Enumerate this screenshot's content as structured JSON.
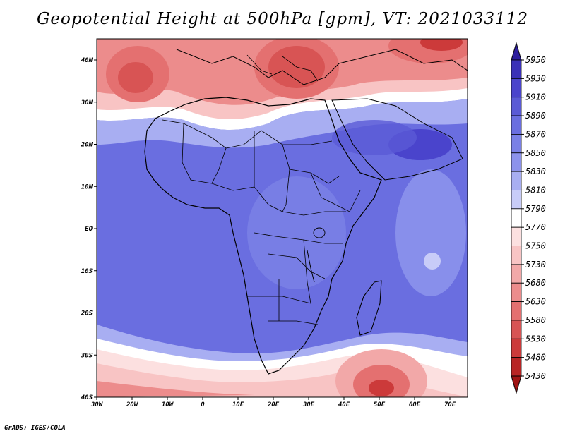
{
  "title": "Geopotential Height at 500hPa [gpm], VT: 2021033112",
  "credit": "GrADS: IGES/COLA",
  "map": {
    "lon_labels": [
      "30W",
      "20W",
      "10W",
      "0",
      "10E",
      "20E",
      "30E",
      "40E",
      "50E",
      "60E",
      "70E"
    ],
    "lat_labels": [
      "40N",
      "30N",
      "20N",
      "10N",
      "EQ",
      "10S",
      "20S",
      "30S",
      "40S"
    ]
  },
  "colorbar": {
    "levels": [
      "5950",
      "5930",
      "5910",
      "5890",
      "5870",
      "5850",
      "5830",
      "5810",
      "5790",
      "5770",
      "5750",
      "5730",
      "5680",
      "5630",
      "5580",
      "5530",
      "5480",
      "5430"
    ],
    "colors": [
      "#2e1e9e",
      "#3a30b8",
      "#4a44cc",
      "#5a5ad6",
      "#6a6ee0",
      "#7a80e6",
      "#8c92ec",
      "#a8aef2",
      "#c8ccf8",
      "#ffffff",
      "#fce0e0",
      "#f8c4c4",
      "#f2a8a8",
      "#ec8c8c",
      "#e47070",
      "#d85454",
      "#cc3a3a",
      "#b82424",
      "#a01414"
    ]
  }
}
